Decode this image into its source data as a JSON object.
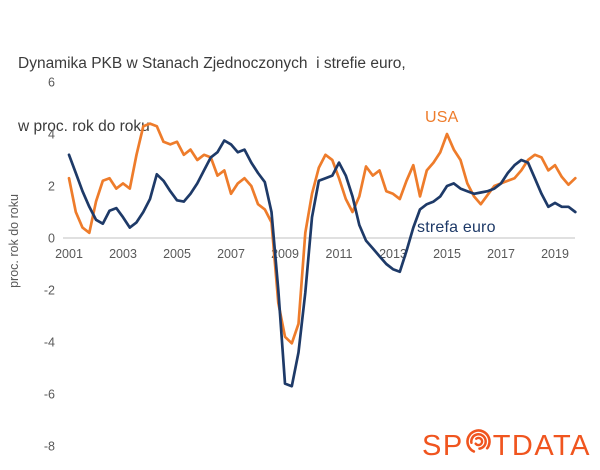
{
  "title": {
    "line1": "Dynamika PKB w Stanach Zjednoczonych  i strefie euro,",
    "line2": "w proc. rok do roku"
  },
  "y_axis_title": "proc. rok do roku",
  "series_labels": {
    "usa": "USA",
    "euro": "strefa euro"
  },
  "logo": {
    "text_before": "SP",
    "text_after": "TDATA",
    "o_icon": "spiral-arcs-icon"
  },
  "colors": {
    "usa_line": "#EE7C2B",
    "euro_line": "#1E3A68",
    "zero_gridline": "#D6D6D6",
    "axis_text": "#595959",
    "title_text": "#3B3B3B",
    "logo": "#F0551F"
  },
  "chart_data": {
    "type": "line",
    "title": "Dynamika PKB w Stanach Zjednoczonych i strefie euro, w proc. rok do roku",
    "xlabel": "",
    "ylabel": "proc. rok do roku",
    "x_start": 2001.0,
    "x_step_years": 0.25,
    "xlim": [
      2001,
      2020
    ],
    "ylim": [
      -8,
      6
    ],
    "x_ticks": [
      2001,
      2003,
      2005,
      2007,
      2009,
      2011,
      2013,
      2015,
      2017,
      2019
    ],
    "y_ticks": [
      6,
      4,
      2,
      0,
      -2,
      -4,
      -6,
      -8
    ],
    "grid": "zero-line-only",
    "legend": "inline-labels",
    "series": [
      {
        "name": "USA",
        "color": "#EE7C2B",
        "values": [
          2.3,
          1.0,
          0.4,
          0.2,
          1.4,
          2.2,
          2.3,
          1.9,
          2.1,
          1.9,
          3.2,
          4.3,
          4.4,
          4.3,
          3.7,
          3.6,
          3.7,
          3.2,
          3.4,
          3.0,
          3.2,
          3.1,
          2.4,
          2.6,
          1.7,
          2.1,
          2.3,
          2.0,
          1.3,
          1.1,
          0.6,
          -2.5,
          -3.8,
          -4.05,
          -3.3,
          0.2,
          1.7,
          2.7,
          3.2,
          3.0,
          2.3,
          1.5,
          1.0,
          1.6,
          2.75,
          2.4,
          2.6,
          1.8,
          1.7,
          1.5,
          2.2,
          2.8,
          1.6,
          2.6,
          2.9,
          3.3,
          4.0,
          3.4,
          3.0,
          2.1,
          1.6,
          1.3,
          1.65,
          2.0,
          2.1,
          2.2,
          2.3,
          2.6,
          3.0,
          3.2,
          3.1,
          2.6,
          2.8,
          2.35,
          2.05,
          2.3
        ]
      },
      {
        "name": "strefa euro",
        "color": "#1E3A68",
        "values": [
          3.2,
          2.5,
          1.8,
          1.2,
          0.7,
          0.55,
          1.05,
          1.15,
          0.8,
          0.4,
          0.6,
          1.0,
          1.5,
          2.45,
          2.2,
          1.8,
          1.45,
          1.4,
          1.7,
          2.1,
          2.6,
          3.1,
          3.3,
          3.75,
          3.6,
          3.3,
          3.4,
          2.9,
          2.5,
          2.15,
          1.0,
          -2.0,
          -5.6,
          -5.7,
          -4.4,
          -2.1,
          0.8,
          2.2,
          2.3,
          2.4,
          2.9,
          2.4,
          1.6,
          0.5,
          -0.1,
          -0.4,
          -0.7,
          -1.0,
          -1.2,
          -1.3,
          -0.5,
          0.4,
          1.1,
          1.3,
          1.4,
          1.6,
          2.0,
          2.1,
          1.9,
          1.8,
          1.7,
          1.75,
          1.8,
          1.9,
          2.1,
          2.5,
          2.8,
          3.0,
          2.9,
          2.3,
          1.7,
          1.2,
          1.35,
          1.2,
          1.2,
          1.0
        ]
      }
    ]
  }
}
